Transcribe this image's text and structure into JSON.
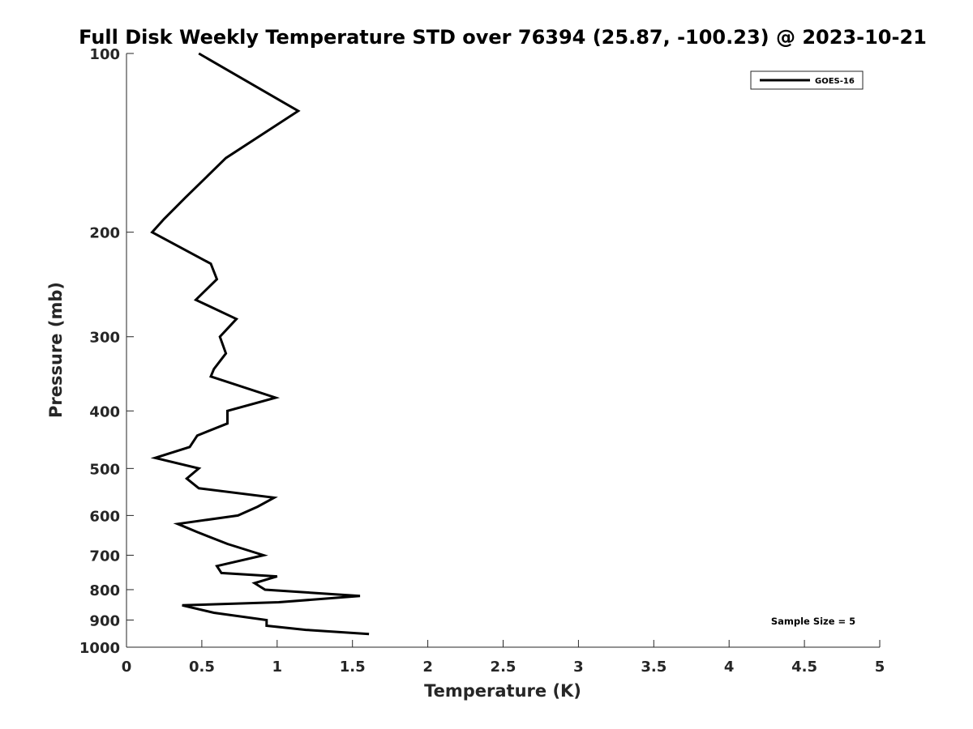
{
  "chart_data": {
    "type": "line",
    "title": "Full Disk Weekly Temperature STD over 76394 (25.87, -100.23) @ 2023-10-21",
    "xlabel": "Temperature (K)",
    "ylabel": "Pressure (mb)",
    "xlim": [
      0,
      5
    ],
    "ylim": [
      100,
      1000
    ],
    "y_scale": "log",
    "y_reversed": true,
    "x_ticks": [
      "0",
      "0.5",
      "1",
      "1.5",
      "2",
      "2.5",
      "3",
      "3.5",
      "4",
      "4.5",
      "5"
    ],
    "y_ticks": [
      "100",
      "200",
      "300",
      "400",
      "500",
      "600",
      "700",
      "800",
      "900",
      "1000"
    ],
    "grid": false,
    "legend_position": "top-right",
    "annotation": "Sample Size = 5",
    "series": [
      {
        "name": "GOES-16",
        "color": "#000000",
        "points": [
          [
            0.48,
            100
          ],
          [
            1.14,
            125
          ],
          [
            0.66,
            150
          ],
          [
            0.39,
            175
          ],
          [
            0.25,
            190
          ],
          [
            0.17,
            200
          ],
          [
            0.56,
            226
          ],
          [
            0.6,
            240
          ],
          [
            0.46,
            260
          ],
          [
            0.73,
            280
          ],
          [
            0.62,
            300
          ],
          [
            0.66,
            320
          ],
          [
            0.58,
            340
          ],
          [
            0.56,
            350
          ],
          [
            0.99,
            380
          ],
          [
            0.67,
            400
          ],
          [
            0.67,
            420
          ],
          [
            0.47,
            440
          ],
          [
            0.42,
            460
          ],
          [
            0.19,
            480
          ],
          [
            0.48,
            500
          ],
          [
            0.4,
            520
          ],
          [
            0.48,
            540
          ],
          [
            0.98,
            560
          ],
          [
            0.87,
            580
          ],
          [
            0.74,
            600
          ],
          [
            0.34,
            620
          ],
          [
            0.47,
            640
          ],
          [
            0.67,
            670
          ],
          [
            0.91,
            700
          ],
          [
            0.6,
            730
          ],
          [
            0.63,
            750
          ],
          [
            1.0,
            760
          ],
          [
            0.85,
            780
          ],
          [
            0.92,
            800
          ],
          [
            1.55,
            820
          ],
          [
            1.01,
            840
          ],
          [
            0.37,
            850
          ],
          [
            0.58,
            875
          ],
          [
            0.93,
            900
          ],
          [
            0.93,
            920
          ],
          [
            1.19,
            935
          ],
          [
            1.61,
            950
          ]
        ]
      }
    ]
  }
}
